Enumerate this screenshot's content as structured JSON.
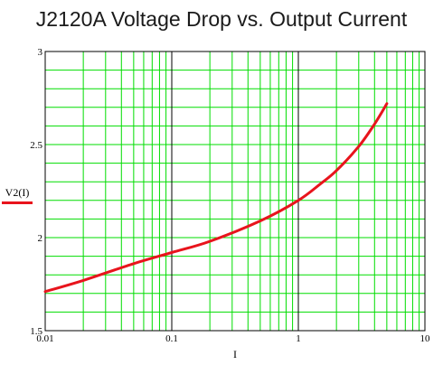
{
  "chart_data": {
    "type": "line",
    "title": "J2120A Voltage Drop vs. Output Current",
    "xlabel": "I",
    "ylabel": "",
    "x_scale": "log",
    "xlim": [
      0.01,
      10
    ],
    "ylim": [
      1.5,
      3
    ],
    "x_ticks": [
      "0.01",
      "0.1",
      "1",
      "10"
    ],
    "y_ticks": [
      "1.5",
      "2",
      "2.5",
      "3"
    ],
    "grid": true,
    "legend": {
      "label": "V2(I)",
      "position": "left"
    },
    "series": [
      {
        "name": "V2(I)",
        "color": "#e8141c",
        "x": [
          0.01,
          0.02,
          0.05,
          0.1,
          0.2,
          0.5,
          1,
          1.5,
          2,
          3,
          4,
          5
        ],
        "y": [
          1.71,
          1.77,
          1.86,
          1.92,
          1.98,
          2.09,
          2.2,
          2.29,
          2.36,
          2.49,
          2.61,
          2.72
        ]
      }
    ]
  },
  "colors": {
    "minor_grid": "#00dd00",
    "major_grid": "#000000",
    "curve": "#e8141c"
  }
}
